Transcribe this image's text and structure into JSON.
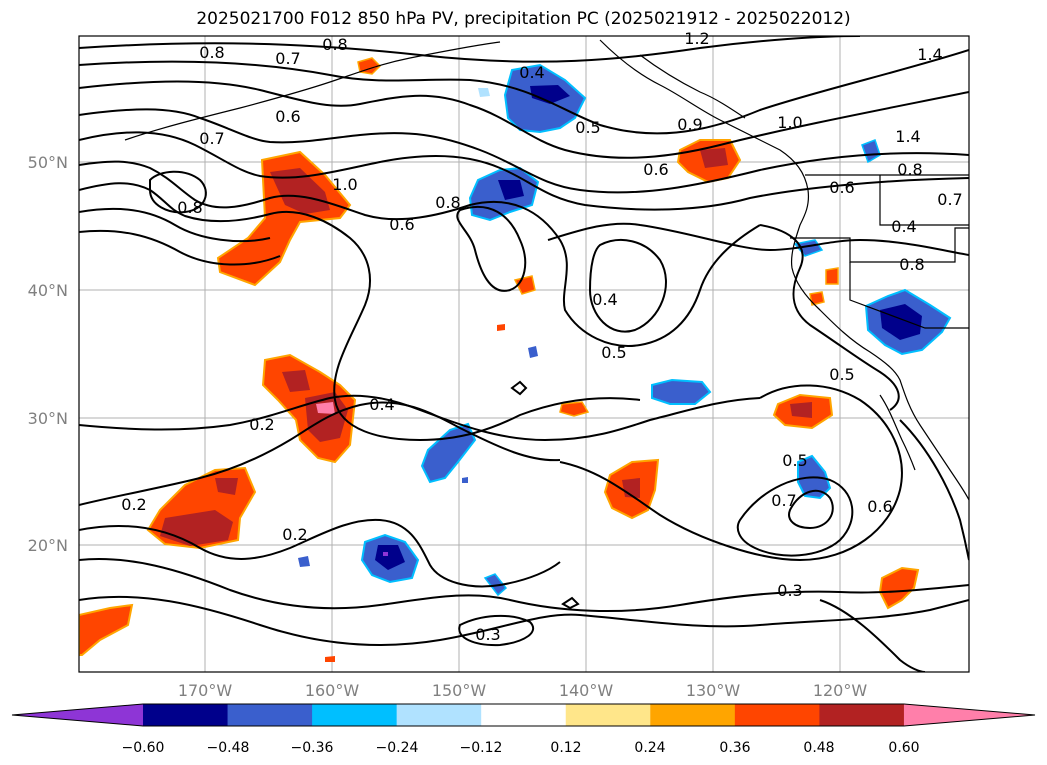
{
  "title": "2025021700 F012 850 hPa PV, precipitation PC (2025021912 - 2025022012)",
  "axes": {
    "lat_labels": [
      "50°N",
      "40°N",
      "30°N",
      "20°N"
    ],
    "lon_labels": [
      "170°W",
      "160°W",
      "150°W",
      "140°W",
      "130°W",
      "120°W"
    ]
  },
  "contour_labels": [
    "0.8",
    "0.7",
    "0.8",
    "1.2",
    "1.4",
    "0.4",
    "0.7",
    "0.6",
    "0.5",
    "0.9",
    "1.0",
    "1.4",
    "0.8",
    "0.8",
    "0.8",
    "1.0",
    "0.6",
    "0.6",
    "0.6",
    "0.7",
    "0.4",
    "0.8",
    "0.4",
    "0.5",
    "0.5",
    "0.2",
    "0.4",
    "0.2",
    "0.2",
    "0.5",
    "0.7",
    "0.6",
    "0.3",
    "0.3"
  ],
  "colorbar": {
    "colors": [
      "#8e35d6",
      "#00008b",
      "#3a5fcd",
      "#00bfff",
      "#b0e2ff",
      "#ffffff",
      "#ffe68a",
      "#ffa500",
      "#ff4500",
      "#b22222",
      "#ff7faa"
    ],
    "tick_labels": [
      "−0.60",
      "−0.48",
      "−0.36",
      "−0.24",
      "−0.12",
      "0.12",
      "0.24",
      "0.36",
      "0.48",
      "0.60"
    ]
  }
}
